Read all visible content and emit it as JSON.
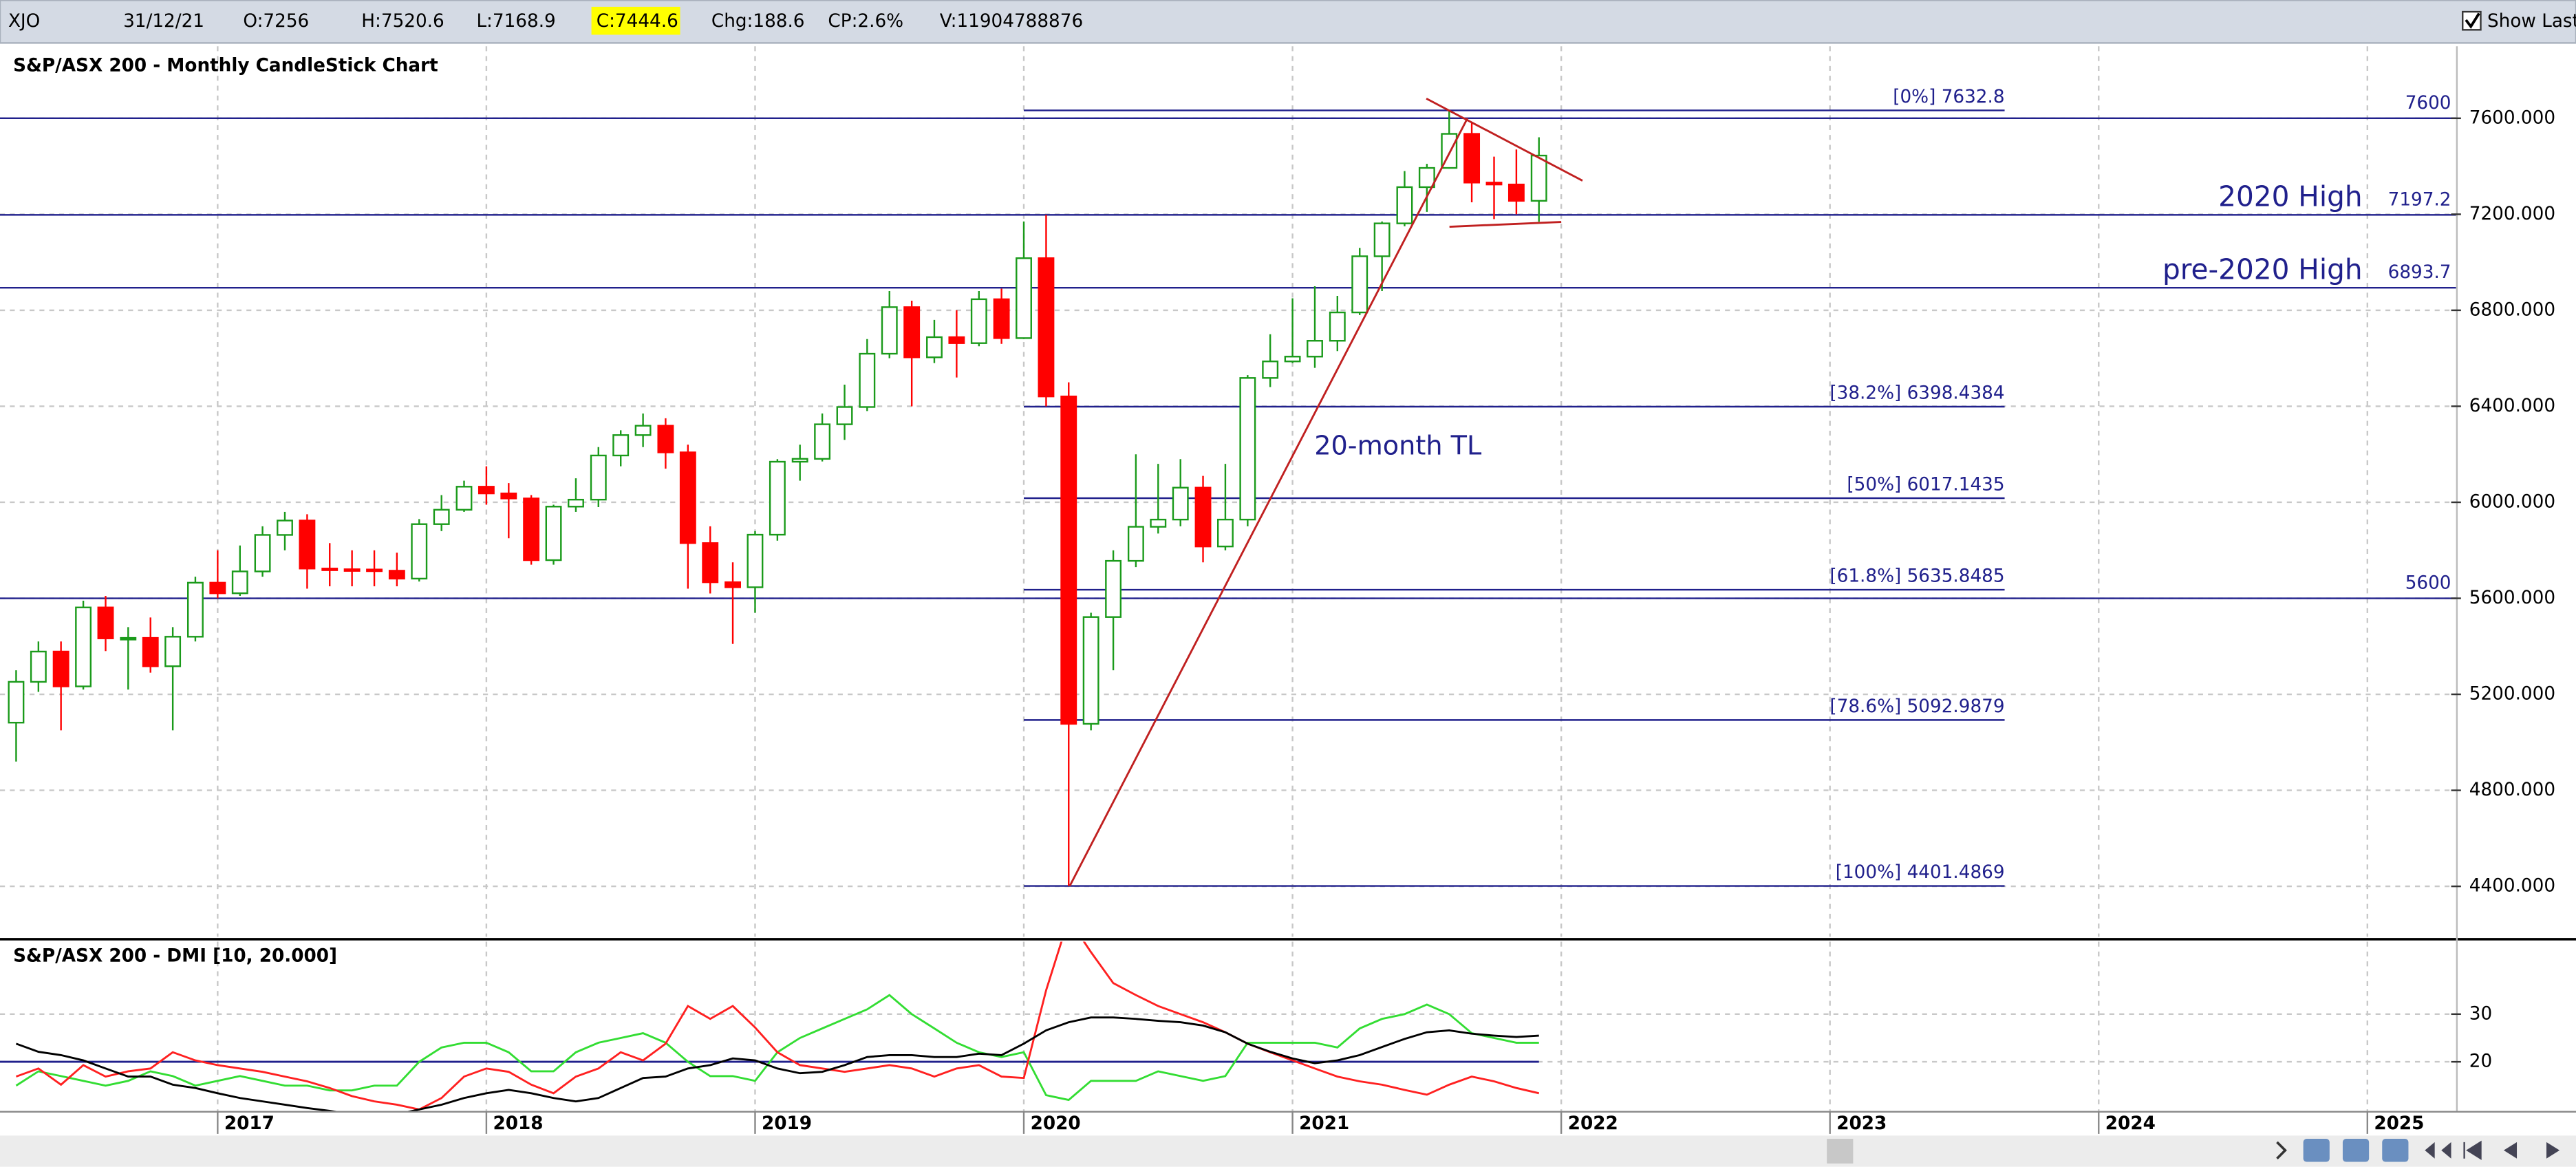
{
  "header": {
    "symbol": "XJO",
    "date": "31/12/21",
    "open": "O:7256",
    "high": "H:7520.6",
    "low": "L:7168.9",
    "close": "C:7444.6",
    "change": "Chg:188.6",
    "change_pct": "CP:2.6%",
    "volume": "V:11904788876",
    "show_last": "Show Last"
  },
  "chart_data": [
    {
      "type": "candlestick",
      "title": "S&P/ASX 200 - Monthly CandleStick Chart",
      "x": [
        2016.25,
        2016.333,
        2016.417,
        2016.5,
        2016.583,
        2016.667,
        2016.75,
        2016.833,
        2016.917,
        2017,
        2017.083,
        2017.167,
        2017.25,
        2017.333,
        2017.417,
        2017.5,
        2017.583,
        2017.667,
        2017.75,
        2017.833,
        2017.917,
        2018,
        2018.083,
        2018.167,
        2018.25,
        2018.333,
        2018.417,
        2018.5,
        2018.583,
        2018.667,
        2018.75,
        2018.833,
        2018.917,
        2019,
        2019.083,
        2019.167,
        2019.25,
        2019.333,
        2019.417,
        2019.5,
        2019.583,
        2019.667,
        2019.75,
        2019.833,
        2019.917,
        2020,
        2020.083,
        2020.167,
        2020.25,
        2020.333,
        2020.417,
        2020.5,
        2020.583,
        2020.667,
        2020.75,
        2020.833,
        2020.917,
        2021,
        2021.083,
        2021.167,
        2021.25,
        2021.333,
        2021.417,
        2021.5,
        2021.583,
        2021.667,
        2021.75,
        2021.833,
        2021.917
      ],
      "open": [
        5082,
        5252,
        5378,
        5233,
        5562,
        5433,
        5435,
        5317,
        5440,
        5665,
        5621,
        5712,
        5864,
        5924,
        5724,
        5721,
        5720,
        5715,
        5682,
        5909,
        5969,
        6065,
        6037,
        6016,
        5759,
        5982,
        6011,
        6195,
        6280,
        6319,
        6208,
        5830,
        5667,
        5646,
        5865,
        6169,
        6181,
        6325,
        6397,
        6619,
        6813,
        6604,
        6688,
        6663,
        6846,
        6684,
        7017,
        6441,
        5077,
        5522,
        5756,
        5898,
        5928,
        6061,
        5816,
        5928,
        6518,
        6587,
        6607,
        6673,
        6791,
        7025,
        7162,
        7313,
        7393,
        7535,
        7332,
        7324,
        7256
      ],
      "high": [
        5300,
        5420,
        5420,
        5590,
        5610,
        5480,
        5520,
        5480,
        5690,
        5800,
        5820,
        5900,
        5960,
        5950,
        5830,
        5800,
        5800,
        5790,
        5930,
        6030,
        6090,
        6150,
        6080,
        6030,
        5990,
        6100,
        6230,
        6300,
        6370,
        6350,
        6240,
        5900,
        5750,
        5880,
        6180,
        6240,
        6370,
        6490,
        6680,
        6880,
        6840,
        6760,
        6800,
        6880,
        6890,
        7170,
        7197.2,
        6500,
        5540,
        5800,
        6200,
        6160,
        6180,
        6110,
        6160,
        6530,
        6700,
        6850,
        6900,
        6860,
        7060,
        7170,
        7380,
        7410,
        7632.8,
        7580,
        7440,
        7470,
        7520.6
      ],
      "low": [
        4920,
        5210,
        5050,
        5220,
        5380,
        5220,
        5290,
        5050,
        5420,
        5600,
        5610,
        5690,
        5800,
        5640,
        5650,
        5650,
        5650,
        5650,
        5670,
        5880,
        5960,
        5990,
        5850,
        5740,
        5740,
        5960,
        5980,
        6150,
        6230,
        6140,
        5640,
        5620,
        5410,
        5540,
        5840,
        6090,
        6170,
        6260,
        6380,
        6600,
        6400,
        6580,
        6520,
        6650,
        6660,
        6680,
        6400,
        4401.5,
        5050,
        5300,
        5730,
        5870,
        5900,
        5750,
        5800,
        5900,
        6480,
        6580,
        6560,
        6630,
        6780,
        6880,
        7150,
        7210,
        7390,
        7250,
        7180,
        7200,
        7168.9
      ],
      "close": [
        5252,
        5378,
        5233,
        5562,
        5433,
        5435,
        5317,
        5440,
        5665,
        5621,
        5712,
        5864,
        5924,
        5724,
        5721,
        5720,
        5715,
        5682,
        5909,
        5969,
        6065,
        6037,
        6016,
        5759,
        5982,
        6011,
        6195,
        6280,
        6319,
        6208,
        5830,
        5667,
        5646,
        5865,
        6169,
        6181,
        6325,
        6397,
        6619,
        6813,
        6604,
        6688,
        6663,
        6846,
        6684,
        7017,
        6441,
        5077,
        5522,
        5756,
        5898,
        5928,
        6061,
        5816,
        5928,
        6518,
        6587,
        6607,
        6673,
        6791,
        7025,
        7162,
        7313,
        7393,
        7535,
        7332,
        7324,
        7256,
        7444.6
      ],
      "up_color": "#1a9a1a",
      "down_color": "#ff0000",
      "xlim": [
        2016.19,
        2025.33
      ],
      "xticks": [
        2017,
        2018,
        2019,
        2020,
        2021,
        2022,
        2023,
        2024,
        2025
      ],
      "ylim": [
        4190,
        7900
      ],
      "yticks": [
        {
          "value": 4400,
          "label": "4400.000"
        },
        {
          "value": 4800,
          "label": "4800.000"
        },
        {
          "value": 5200,
          "label": "5200.000"
        },
        {
          "value": 5600,
          "label": "5600.000"
        },
        {
          "value": 6000,
          "label": "6000.000"
        },
        {
          "value": 6400,
          "label": "6400.000"
        },
        {
          "value": 6800,
          "label": "6800.000"
        },
        {
          "value": 7200,
          "label": "7200.000"
        },
        {
          "value": 7600,
          "label": "7600.000"
        }
      ],
      "grid": true,
      "level_color": "#20208c",
      "levels": [
        {
          "value": 7600
        },
        {
          "value": 7197.2,
          "note": "2020 High"
        },
        {
          "value": 6893.7,
          "note": "pre-2020 High"
        },
        {
          "value": 5600
        }
      ],
      "fib_levels": [
        {
          "value": 7632.8,
          "label": "[0%] 7632.8"
        },
        {
          "value": 6398.4384,
          "label": "[38.2%] 6398.4384"
        },
        {
          "value": 6017.1435,
          "label": "[50%] 6017.1435"
        },
        {
          "value": 5635.8485,
          "label": "[61.8%] 5635.8485"
        },
        {
          "value": 5092.9879,
          "label": "[78.6%] 5092.9879"
        },
        {
          "value": 4401.4869,
          "label": "[100%] 4401.4869"
        }
      ],
      "trendline_color": "#c02020",
      "trendlines": [
        {
          "points": [
            [
              2020.171,
              4401.5
            ],
            [
              2021.651,
              7600
            ]
          ]
        },
        {
          "points": [
            [
              2021.498,
              7682
            ],
            [
              2022.079,
              7340
            ]
          ]
        },
        {
          "points": [
            [
              2021.584,
              7148
            ],
            [
              2022.0,
              7168
            ]
          ]
        }
      ],
      "annotations": [
        "20-month TL"
      ]
    },
    {
      "type": "line",
      "title": "S&P/ASX 200 - DMI [10, 20.000]",
      "x": [
        2016.25,
        2016.333,
        2016.417,
        2016.5,
        2016.583,
        2016.667,
        2016.75,
        2016.833,
        2016.917,
        2017,
        2017.083,
        2017.167,
        2017.25,
        2017.333,
        2017.417,
        2017.5,
        2017.583,
        2017.667,
        2017.75,
        2017.833,
        2017.917,
        2018,
        2018.083,
        2018.167,
        2018.25,
        2018.333,
        2018.417,
        2018.5,
        2018.583,
        2018.667,
        2018.75,
        2018.833,
        2018.917,
        2019,
        2019.083,
        2019.167,
        2019.25,
        2019.333,
        2019.417,
        2019.5,
        2019.583,
        2019.667,
        2019.75,
        2019.833,
        2019.917,
        2020,
        2020.083,
        2020.167,
        2020.25,
        2020.333,
        2020.417,
        2020.5,
        2020.583,
        2020.667,
        2020.75,
        2020.833,
        2020.917,
        2021,
        2021.083,
        2021.167,
        2021.25,
        2021.333,
        2021.417,
        2021.5,
        2021.583,
        2021.667,
        2021.75,
        2021.833,
        2021.917
      ],
      "series": [
        {
          "color": "#33dd33",
          "values": [
            15,
            18,
            17,
            16,
            15,
            16,
            18,
            17,
            15,
            16,
            17,
            16,
            15,
            15,
            14,
            14,
            15,
            15,
            20,
            23,
            24,
            24,
            22,
            18,
            18,
            22,
            24,
            25,
            26,
            24,
            20,
            17,
            17,
            16,
            22,
            25,
            27,
            29,
            31,
            34,
            30,
            27,
            24,
            22,
            21,
            22,
            13,
            12,
            16,
            16,
            16,
            18,
            17,
            16,
            17,
            24,
            24,
            24,
            24,
            23,
            27,
            29,
            30,
            32,
            30,
            26,
            25,
            24,
            24
          ]
        },
        {
          "color": "#ff2020",
          "values": [
            16.9,
            18.6,
            15.2,
            19.3,
            16.9,
            18,
            18.6,
            22,
            20.3,
            19.3,
            18.6,
            17.9,
            16.9,
            15.9,
            14.5,
            12.8,
            11.7,
            11,
            10,
            12.4,
            16.9,
            18.6,
            17.9,
            15.2,
            13.4,
            16.9,
            18.6,
            22,
            20.3,
            23.8,
            31.7,
            29,
            31.7,
            27.2,
            22,
            19.3,
            18.6,
            17.9,
            18.6,
            19.3,
            18.6,
            16.9,
            18.6,
            19.3,
            16.9,
            16.6,
            35,
            50,
            43,
            36.5,
            34,
            31.7,
            30,
            28.3,
            26.2,
            23.8,
            22,
            20.3,
            18.6,
            16.9,
            15.9,
            15.2,
            14.1,
            13.1,
            15.2,
            16.9,
            15.9,
            14.5,
            13.4
          ]
        },
        {
          "color": "#000000",
          "values": [
            23.8,
            22.1,
            21.4,
            20.3,
            18.6,
            16.9,
            16.9,
            15.2,
            14.5,
            13.4,
            12.4,
            11.7,
            11,
            10.3,
            9.7,
            9,
            8.3,
            9,
            10,
            11,
            12.4,
            13.4,
            14.1,
            13.4,
            12.4,
            11.7,
            12.4,
            14.5,
            16.6,
            16.9,
            18.6,
            19.3,
            20.7,
            20.3,
            18.6,
            17.6,
            17.9,
            19.3,
            21,
            21.4,
            21.4,
            21,
            21,
            21.7,
            21.4,
            23.8,
            26.6,
            28.3,
            29.3,
            29.3,
            29,
            28.6,
            28.3,
            27.6,
            26.2,
            23.8,
            22.1,
            20.7,
            19.7,
            20.3,
            21.4,
            23.1,
            24.8,
            26.2,
            26.6,
            25.9,
            25.5,
            25.2,
            25.5
          ]
        }
      ],
      "xlim": [
        2016.19,
        2025.33
      ],
      "xticks": [
        2017,
        2018,
        2019,
        2020,
        2021,
        2022,
        2023,
        2024,
        2025
      ],
      "ylim": [
        9.7,
        45.2
      ],
      "yticks": [
        20,
        30
      ],
      "grid": true,
      "reference_line": {
        "value": 20,
        "color": "#20208c"
      }
    }
  ]
}
